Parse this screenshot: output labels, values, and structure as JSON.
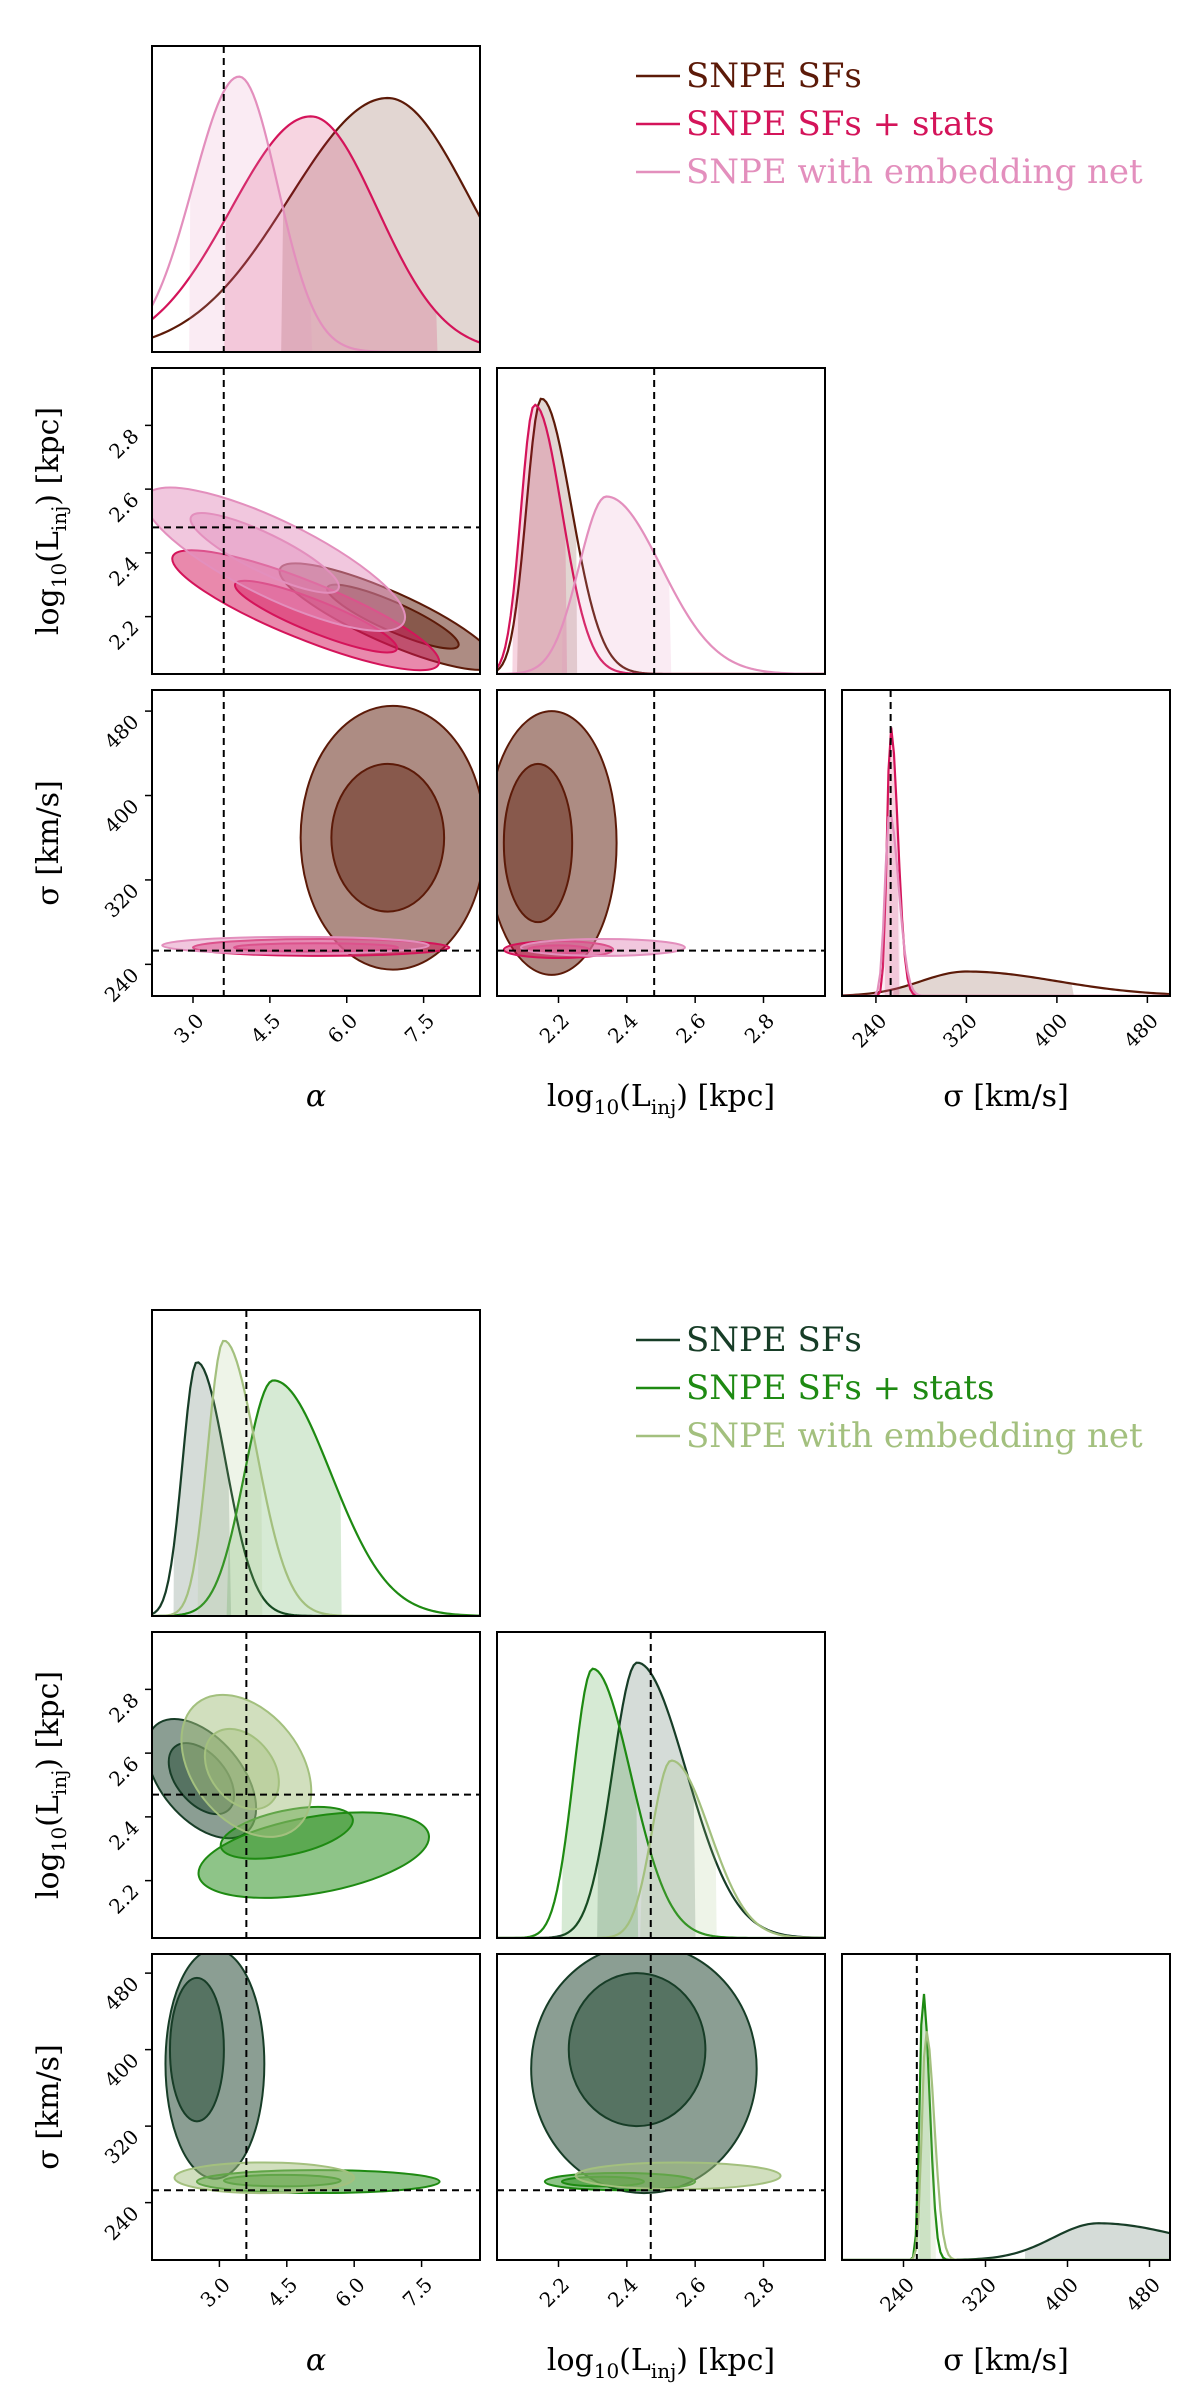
{
  "chart_data": [
    {
      "type": "corner",
      "parameters": [
        "α",
        "log10(L_inj) [kpc]",
        "σ [km/s]"
      ],
      "axis_labels": {
        "alpha": "α",
        "logL": "log",
        "logL_sub": "10",
        "logL_tail": "(L",
        "logL_inj": "inj",
        "logL_end": ") [kpc]",
        "sigma": "σ [km/s]"
      },
      "truth": {
        "alpha": 3.6,
        "logL": 2.48,
        "sigma": 253
      },
      "ranges": {
        "alpha": [
          2.2,
          8.6
        ],
        "logL": [
          2.02,
          2.98
        ],
        "sigma": [
          210,
          500
        ]
      },
      "ticks": {
        "alpha": [
          "3.0",
          "4.5",
          "6.0",
          "7.5"
        ],
        "logL_x": [
          "2.2",
          "2.4",
          "2.6",
          "2.8"
        ],
        "logL_y": [
          "2.2",
          "2.4",
          "2.6",
          "2.8"
        ],
        "sigma_x": [
          "240",
          "320",
          "400",
          "480"
        ],
        "sigma_y": [
          "240",
          "320",
          "400",
          "480"
        ]
      },
      "series": [
        {
          "name": "SNPE SFs",
          "color": "#5c1a08"
        },
        {
          "name": "SNPE SFs + stats",
          "color": "#d4145a"
        },
        {
          "name": "SNPE with embedding net",
          "color": "#e38fbd"
        }
      ],
      "marginals": {
        "alpha": [
          {
            "mode": 6.8,
            "width": 1.6,
            "hi": 8.5
          },
          {
            "mode": 5.3,
            "width": 1.3,
            "hi": 7.2
          },
          {
            "mode": 3.9,
            "width": 0.75,
            "hi": 5.6
          }
        ],
        "logL": [
          {
            "mode": 2.15,
            "width": 0.055
          },
          {
            "mode": 2.13,
            "width": 0.05
          },
          {
            "mode": 2.34,
            "width": 0.1
          }
        ],
        "sigma": [
          {
            "mode": 320,
            "width": 50
          },
          {
            "mode": 253,
            "width": 4
          },
          {
            "mode": 252,
            "width": 5
          }
        ]
      }
    },
    {
      "type": "corner",
      "parameters": [
        "α",
        "log10(L_inj) [kpc]",
        "σ [km/s]"
      ],
      "axis_labels": {
        "alpha": "α",
        "logL": "log",
        "logL_sub": "10",
        "logL_tail": "(L",
        "logL_inj": "inj",
        "logL_end": ") [kpc]",
        "sigma": "σ [km/s]"
      },
      "truth": {
        "alpha": 3.6,
        "logL": 2.47,
        "sigma": 253
      },
      "ranges": {
        "alpha": [
          1.5,
          8.8
        ],
        "logL": [
          2.02,
          2.98
        ],
        "sigma": [
          180,
          500
        ]
      },
      "ticks": {
        "alpha": [
          "3.0",
          "4.5",
          "6.0",
          "7.5"
        ],
        "logL_x": [
          "2.2",
          "2.4",
          "2.6",
          "2.8"
        ],
        "logL_y": [
          "2.2",
          "2.4",
          "2.6",
          "2.8"
        ],
        "sigma_x": [
          "240",
          "320",
          "400",
          "480"
        ],
        "sigma_y": [
          "240",
          "320",
          "400",
          "480"
        ]
      },
      "series": [
        {
          "name": "SNPE SFs",
          "color": "#173d27"
        },
        {
          "name": "SNPE SFs + stats",
          "color": "#1e8a12"
        },
        {
          "name": "SNPE with embedding net",
          "color": "#a3c07e"
        }
      ],
      "marginals": {
        "alpha": [
          {
            "mode": 2.5,
            "width": 0.4
          },
          {
            "mode": 4.2,
            "width": 0.8
          },
          {
            "mode": 3.1,
            "width": 0.45
          }
        ],
        "logL": [
          {
            "mode": 2.43,
            "width": 0.09
          },
          {
            "mode": 2.3,
            "width": 0.07
          },
          {
            "mode": 2.53,
            "width": 0.07
          }
        ],
        "sigma": [
          {
            "mode": 430,
            "width": 55
          },
          {
            "mode": 259,
            "width": 4
          },
          {
            "mode": 262,
            "width": 5
          }
        ]
      }
    }
  ]
}
